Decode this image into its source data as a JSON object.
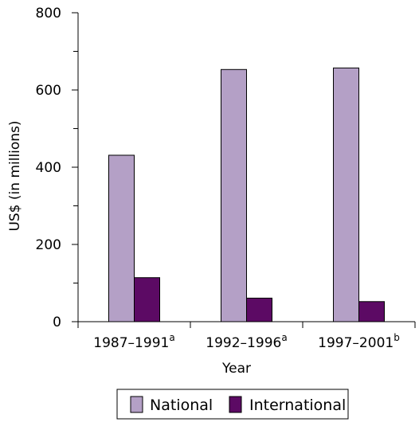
{
  "chart_data": {
    "type": "bar",
    "categories": [
      "1987–1991",
      "1992–1996",
      "1997–2001"
    ],
    "category_superscripts": [
      "a",
      "a",
      "b"
    ],
    "series": [
      {
        "name": "National",
        "values": [
          431,
          653,
          657
        ],
        "color": "#b4a0c6"
      },
      {
        "name": "International",
        "values": [
          114,
          61,
          52
        ],
        "color": "#5c0a64"
      }
    ],
    "xlabel": "Year",
    "ylabel": "US$ (in millions)",
    "ylim": [
      0,
      800
    ],
    "yticks": [
      0,
      200,
      400,
      600,
      800
    ],
    "grid": false,
    "legend_position": "bottom"
  }
}
